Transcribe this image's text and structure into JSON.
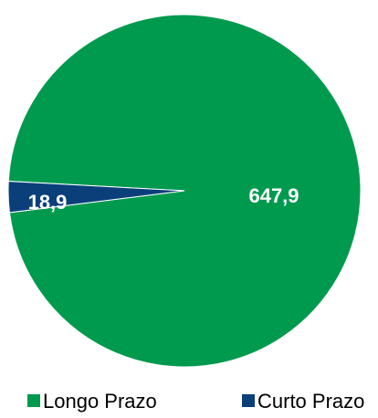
{
  "chart_data": {
    "type": "pie",
    "slices": [
      {
        "name": "Longo Prazo",
        "value": 647.9,
        "label": "647,9",
        "color": "#009A4E"
      },
      {
        "name": "Curto Prazo",
        "value": 18.9,
        "label": "18,9",
        "color": "#0A3F7A"
      }
    ],
    "legend_position": "bottom"
  }
}
